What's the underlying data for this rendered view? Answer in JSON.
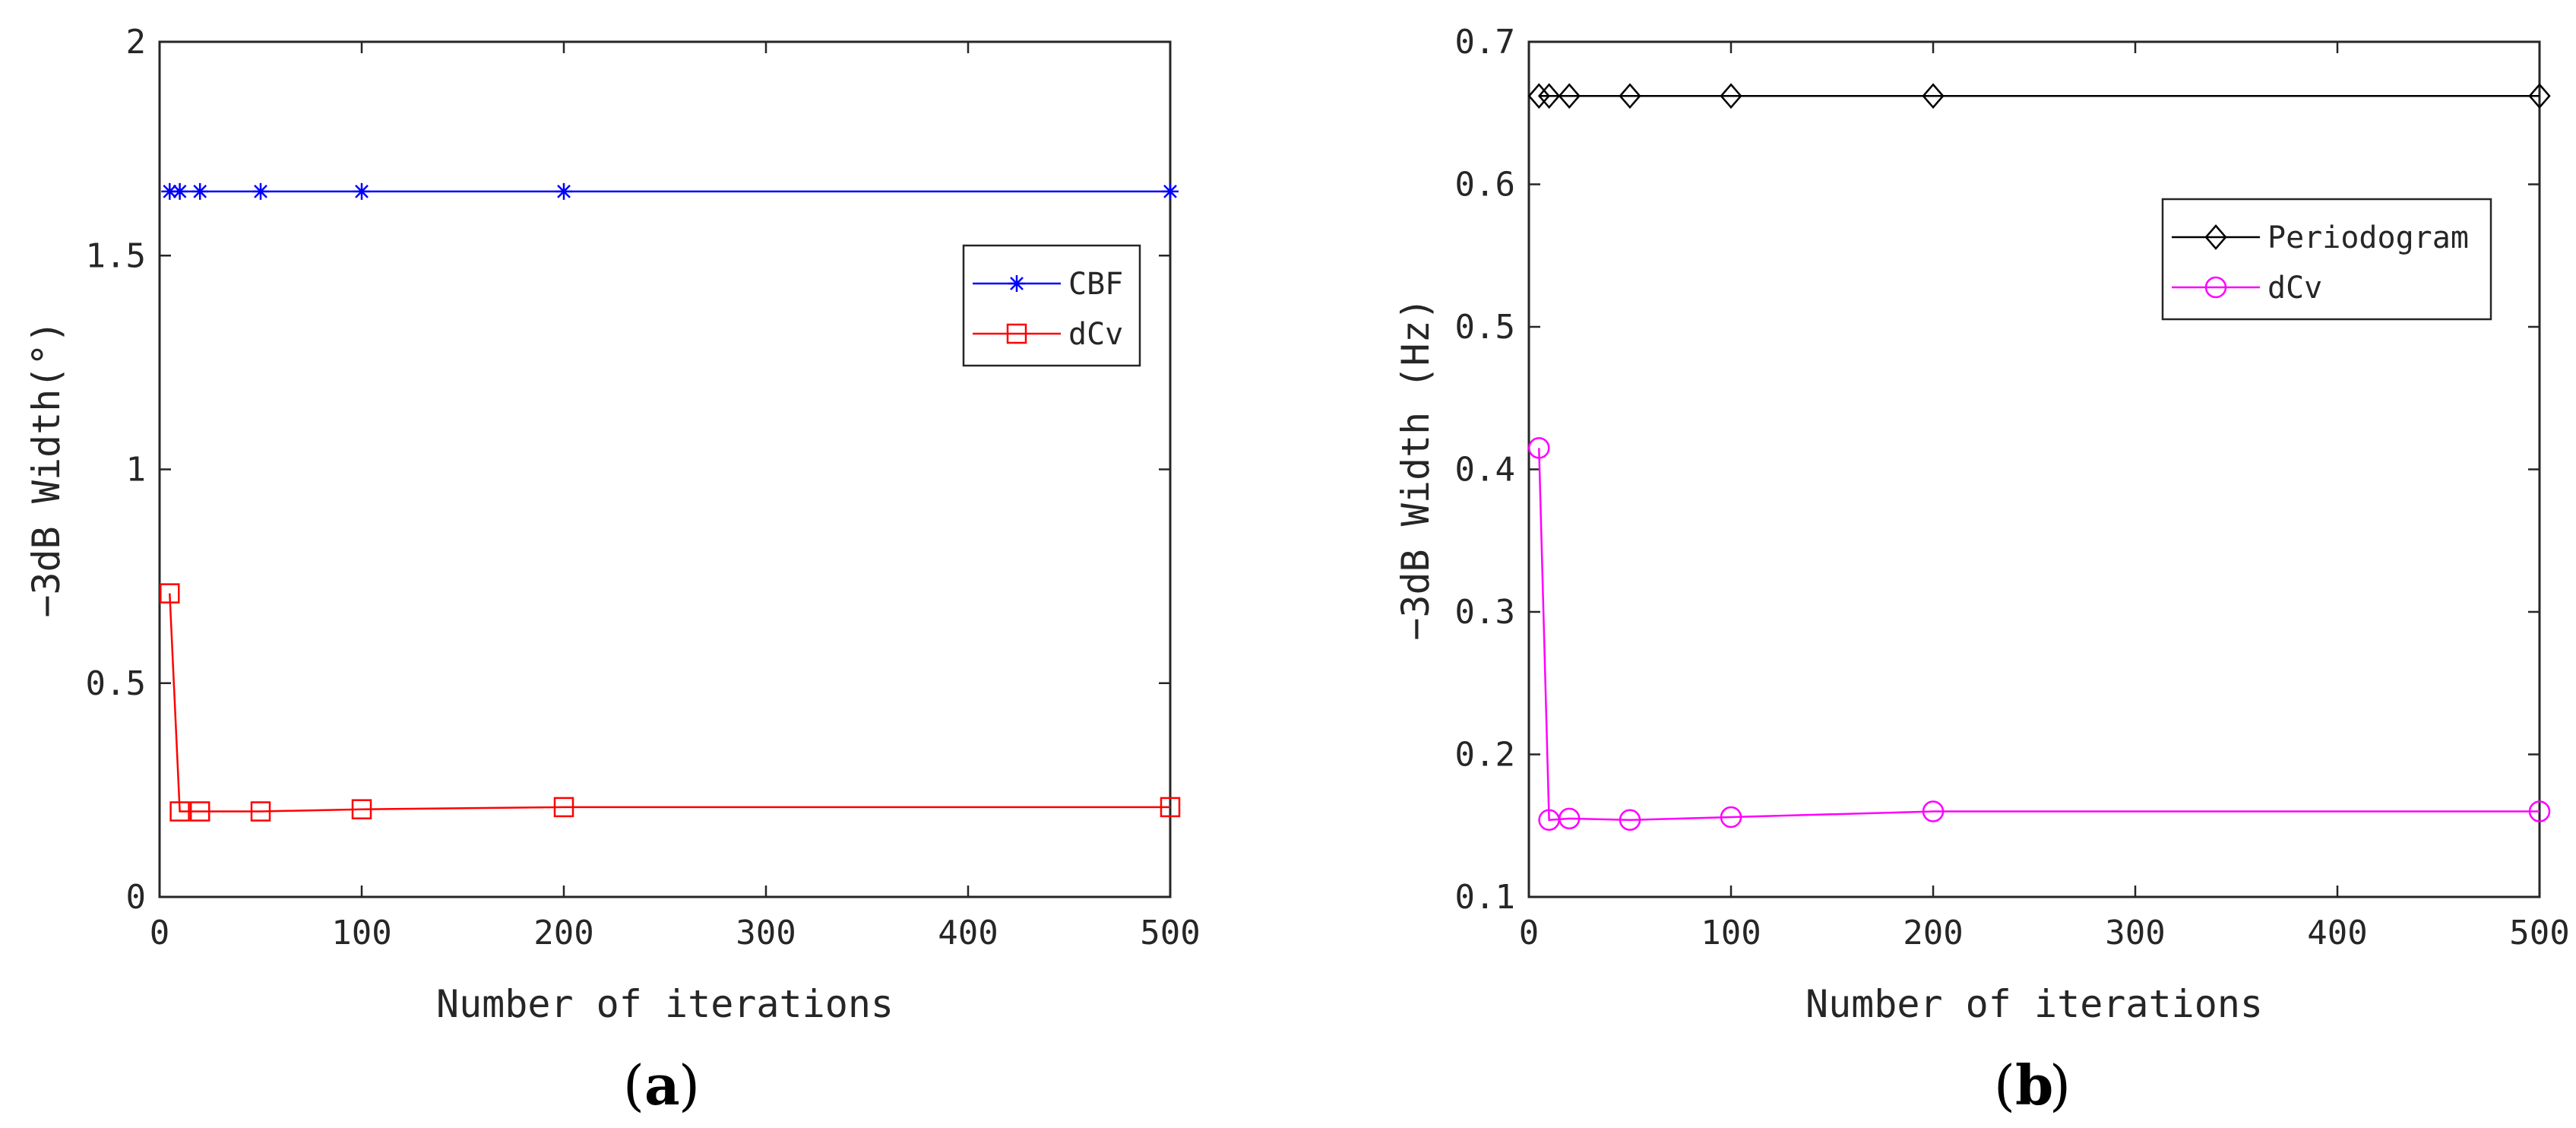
{
  "chart_data": [
    {
      "type": "line",
      "panel_label": "a",
      "xlabel": "Number of iterations",
      "ylabel": "−3dB Width(°)",
      "xlim": [
        0,
        500
      ],
      "ylim": [
        0,
        2
      ],
      "xticks": [
        0,
        100,
        200,
        300,
        400,
        500
      ],
      "yticks": [
        0,
        0.5,
        1,
        1.5,
        2
      ],
      "xtick_labels": [
        "0",
        "100",
        "200",
        "300",
        "400",
        "500"
      ],
      "ytick_labels": [
        "0",
        "0.5",
        "1",
        "1.5",
        "2"
      ],
      "legend_position": "right-upper",
      "grid": false,
      "x": [
        5,
        10,
        20,
        50,
        100,
        200,
        500
      ],
      "series": [
        {
          "name": "CBF",
          "color": "#0000ff",
          "marker": "asterisk",
          "values": [
            1.65,
            1.65,
            1.65,
            1.65,
            1.65,
            1.65,
            1.65
          ]
        },
        {
          "name": "dCv",
          "color": "#ff0000",
          "marker": "square",
          "values": [
            0.71,
            0.2,
            0.2,
            0.2,
            0.205,
            0.21,
            0.21
          ]
        }
      ]
    },
    {
      "type": "line",
      "panel_label": "b",
      "xlabel": "Number of iterations",
      "ylabel": "−3dB Width (Hz)",
      "xlim": [
        0,
        500
      ],
      "ylim": [
        0.1,
        0.7
      ],
      "xticks": [
        0,
        100,
        200,
        300,
        400,
        500
      ],
      "yticks": [
        0.1,
        0.2,
        0.3,
        0.4,
        0.5,
        0.6,
        0.7
      ],
      "xtick_labels": [
        "0",
        "100",
        "200",
        "300",
        "400",
        "500"
      ],
      "ytick_labels": [
        "0.1",
        "0.2",
        "0.3",
        "0.4",
        "0.5",
        "0.6",
        "0.7"
      ],
      "legend_position": "top-right",
      "grid": false,
      "x": [
        5,
        10,
        20,
        50,
        100,
        200,
        500
      ],
      "series": [
        {
          "name": "Periodogram",
          "color": "#000000",
          "marker": "diamond",
          "values": [
            0.662,
            0.662,
            0.662,
            0.662,
            0.662,
            0.662,
            0.662
          ]
        },
        {
          "name": "dCv",
          "color": "#ff00ff",
          "marker": "circle",
          "values": [
            0.415,
            0.154,
            0.155,
            0.154,
            0.156,
            0.16,
            0.16
          ]
        }
      ]
    }
  ]
}
